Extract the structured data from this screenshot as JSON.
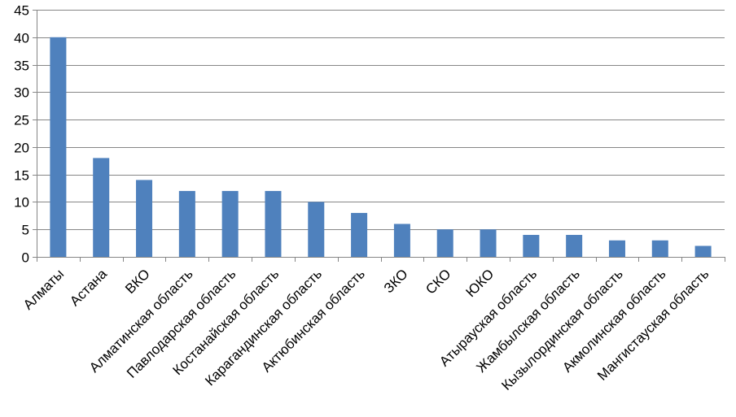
{
  "chart_data": {
    "type": "bar",
    "title": "",
    "xlabel": "",
    "ylabel": "",
    "categories": [
      "Алматы",
      "Астана",
      "ВКО",
      "Алматинская область",
      "Павлодарская область",
      "Костанайская  область",
      "Карагандинская  область",
      "Актюбинская область",
      "ЗКО",
      "СКО",
      "ЮКО",
      "Атырауская область",
      "Жамбылская область",
      "Кызылординская  область",
      "Акмолинская область",
      "Мангистауская область"
    ],
    "values": [
      40,
      18,
      14,
      12,
      12,
      12,
      10,
      8,
      6,
      5,
      5,
      4,
      4,
      3,
      3,
      2
    ],
    "ylim": [
      0,
      45
    ],
    "yticks": [
      0,
      5,
      10,
      15,
      20,
      25,
      30,
      35,
      40,
      45
    ],
    "grid": true,
    "legend": "none",
    "bar_color": "#4f81bd",
    "grid_color": "#868686"
  }
}
